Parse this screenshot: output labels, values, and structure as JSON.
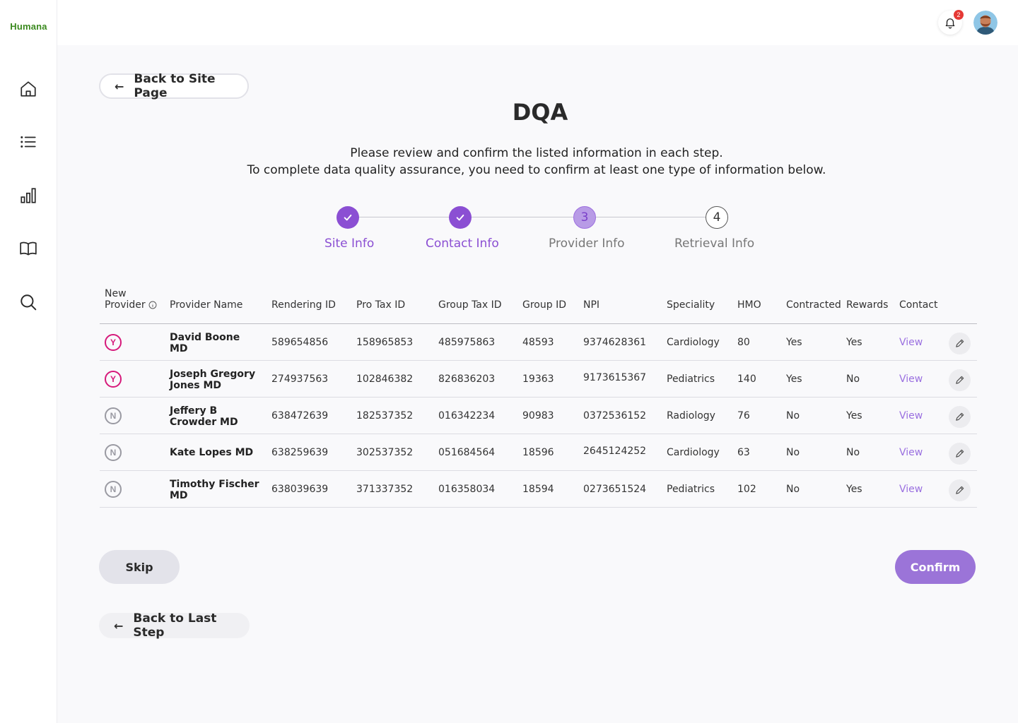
{
  "app": {
    "logo_text": "Humana"
  },
  "sidebar": {
    "items": [
      {
        "icon": "home-icon"
      },
      {
        "icon": "list-icon"
      },
      {
        "icon": "bar-chart-icon"
      },
      {
        "icon": "book-icon"
      },
      {
        "icon": "search-icon"
      }
    ]
  },
  "header": {
    "notification_count": "2"
  },
  "nav": {
    "back_to_site": "Back to Site Page",
    "back_to_last": "Back to Last Step"
  },
  "page": {
    "title": "DQA",
    "desc_line1": "Please review and confirm the listed information in each step.",
    "desc_line2": "To complete data quality assurance, you need to confirm at least one type of information below."
  },
  "stepper": {
    "steps": [
      {
        "label": "Site Info",
        "status": "done",
        "number": "1"
      },
      {
        "label": "Contact Info",
        "status": "done",
        "number": "2"
      },
      {
        "label": "Provider Info",
        "status": "active",
        "number": "3"
      },
      {
        "label": "Retrieval Info",
        "status": "todo",
        "number": "4"
      }
    ]
  },
  "table": {
    "headers": {
      "new_provider_1": "New",
      "new_provider_2": "Provider",
      "provider_name": "Provider Name",
      "rendering_id": "Rendering ID",
      "pro_tax_id": "Pro Tax ID",
      "group_tax_id": "Group Tax ID",
      "group_id": "Group ID",
      "npi": "NPI",
      "speciality": "Speciality",
      "hmo": "HMO",
      "contracted": "Contracted",
      "rewards": "Rewards",
      "contact": "Contact"
    },
    "rows": [
      {
        "new": "Y",
        "name1": "David Boone",
        "name2": "MD",
        "rendering_id": "589654856",
        "pro_tax_id": "158965853",
        "group_tax_id": "485975863",
        "group_id": "48593",
        "npi": "9374628361",
        "speciality": "Cardiology",
        "hmo": "80",
        "contracted": "Yes",
        "rewards": "Yes",
        "contact": "View"
      },
      {
        "new": "Y",
        "name1": "Joseph Gregory",
        "name2": "Jones MD",
        "rendering_id": "274937563",
        "pro_tax_id": "102846382",
        "group_tax_id": "826836203",
        "group_id": "19363",
        "npi": "9173615367",
        "speciality": "Pediatrics",
        "hmo": "140",
        "contracted": "Yes",
        "rewards": "No",
        "contact": "View"
      },
      {
        "new": "N",
        "name1": "Jeffery B",
        "name2": "Crowder MD",
        "rendering_id": "638472639",
        "pro_tax_id": "182537352",
        "group_tax_id": "016342234",
        "group_id": "90983",
        "npi": "0372536152",
        "speciality": "Radiology",
        "hmo": "76",
        "contracted": "No",
        "rewards": "Yes",
        "contact": "View"
      },
      {
        "new": "N",
        "name1": "Kate Lopes MD",
        "name2": "",
        "rendering_id": "638259639",
        "pro_tax_id": "302537352",
        "group_tax_id": "051684564",
        "group_id": "18596",
        "npi": "2645124252",
        "speciality": "Cardiology",
        "hmo": "63",
        "contracted": "No",
        "rewards": "No",
        "contact": "View"
      },
      {
        "new": "N",
        "name1": "Timothy Fischer",
        "name2": "MD",
        "rendering_id": "638039639",
        "pro_tax_id": "371337352",
        "group_tax_id": "016358034",
        "group_id": "18594",
        "npi": "0273651524",
        "speciality": "Pediatrics",
        "hmo": "102",
        "contracted": "No",
        "rewards": "Yes",
        "contact": "View"
      }
    ]
  },
  "actions": {
    "skip": "Skip",
    "confirm": "Confirm"
  },
  "colors": {
    "primary": "#8b4fd3",
    "confirm": "#9b74d8",
    "brand": "#3b8a1f",
    "flag_yes": "#d6197a",
    "flag_no": "#9a9aa2"
  }
}
